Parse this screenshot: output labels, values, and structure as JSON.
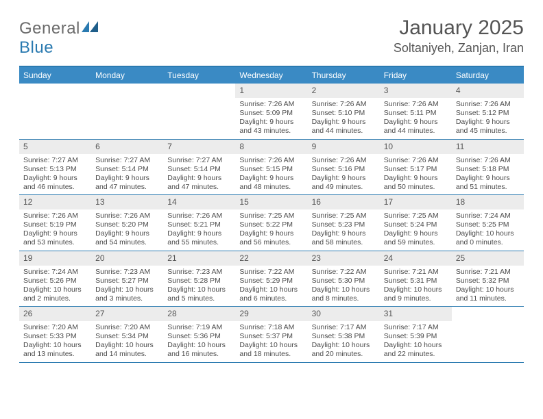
{
  "logo": {
    "text1": "General",
    "text2": "Blue"
  },
  "title": "January 2025",
  "location": "Soltaniyeh, Zanjan, Iran",
  "colors": {
    "header_bg": "#3a8ac4",
    "header_border": "#2a7ab0",
    "daynum_bg": "#ececec",
    "text": "#4a4a4a",
    "title_text": "#555555"
  },
  "day_labels": [
    "Sunday",
    "Monday",
    "Tuesday",
    "Wednesday",
    "Thursday",
    "Friday",
    "Saturday"
  ],
  "weeks": [
    [
      {
        "empty": true
      },
      {
        "empty": true
      },
      {
        "empty": true
      },
      {
        "n": "1",
        "sr": "7:26 AM",
        "ss": "5:09 PM",
        "dl": "9 hours and 43 minutes."
      },
      {
        "n": "2",
        "sr": "7:26 AM",
        "ss": "5:10 PM",
        "dl": "9 hours and 44 minutes."
      },
      {
        "n": "3",
        "sr": "7:26 AM",
        "ss": "5:11 PM",
        "dl": "9 hours and 44 minutes."
      },
      {
        "n": "4",
        "sr": "7:26 AM",
        "ss": "5:12 PM",
        "dl": "9 hours and 45 minutes."
      }
    ],
    [
      {
        "n": "5",
        "sr": "7:27 AM",
        "ss": "5:13 PM",
        "dl": "9 hours and 46 minutes."
      },
      {
        "n": "6",
        "sr": "7:27 AM",
        "ss": "5:14 PM",
        "dl": "9 hours and 47 minutes."
      },
      {
        "n": "7",
        "sr": "7:27 AM",
        "ss": "5:14 PM",
        "dl": "9 hours and 47 minutes."
      },
      {
        "n": "8",
        "sr": "7:26 AM",
        "ss": "5:15 PM",
        "dl": "9 hours and 48 minutes."
      },
      {
        "n": "9",
        "sr": "7:26 AM",
        "ss": "5:16 PM",
        "dl": "9 hours and 49 minutes."
      },
      {
        "n": "10",
        "sr": "7:26 AM",
        "ss": "5:17 PM",
        "dl": "9 hours and 50 minutes."
      },
      {
        "n": "11",
        "sr": "7:26 AM",
        "ss": "5:18 PM",
        "dl": "9 hours and 51 minutes."
      }
    ],
    [
      {
        "n": "12",
        "sr": "7:26 AM",
        "ss": "5:19 PM",
        "dl": "9 hours and 53 minutes."
      },
      {
        "n": "13",
        "sr": "7:26 AM",
        "ss": "5:20 PM",
        "dl": "9 hours and 54 minutes."
      },
      {
        "n": "14",
        "sr": "7:26 AM",
        "ss": "5:21 PM",
        "dl": "9 hours and 55 minutes."
      },
      {
        "n": "15",
        "sr": "7:25 AM",
        "ss": "5:22 PM",
        "dl": "9 hours and 56 minutes."
      },
      {
        "n": "16",
        "sr": "7:25 AM",
        "ss": "5:23 PM",
        "dl": "9 hours and 58 minutes."
      },
      {
        "n": "17",
        "sr": "7:25 AM",
        "ss": "5:24 PM",
        "dl": "9 hours and 59 minutes."
      },
      {
        "n": "18",
        "sr": "7:24 AM",
        "ss": "5:25 PM",
        "dl": "10 hours and 0 minutes."
      }
    ],
    [
      {
        "n": "19",
        "sr": "7:24 AM",
        "ss": "5:26 PM",
        "dl": "10 hours and 2 minutes."
      },
      {
        "n": "20",
        "sr": "7:23 AM",
        "ss": "5:27 PM",
        "dl": "10 hours and 3 minutes."
      },
      {
        "n": "21",
        "sr": "7:23 AM",
        "ss": "5:28 PM",
        "dl": "10 hours and 5 minutes."
      },
      {
        "n": "22",
        "sr": "7:22 AM",
        "ss": "5:29 PM",
        "dl": "10 hours and 6 minutes."
      },
      {
        "n": "23",
        "sr": "7:22 AM",
        "ss": "5:30 PM",
        "dl": "10 hours and 8 minutes."
      },
      {
        "n": "24",
        "sr": "7:21 AM",
        "ss": "5:31 PM",
        "dl": "10 hours and 9 minutes."
      },
      {
        "n": "25",
        "sr": "7:21 AM",
        "ss": "5:32 PM",
        "dl": "10 hours and 11 minutes."
      }
    ],
    [
      {
        "n": "26",
        "sr": "7:20 AM",
        "ss": "5:33 PM",
        "dl": "10 hours and 13 minutes."
      },
      {
        "n": "27",
        "sr": "7:20 AM",
        "ss": "5:34 PM",
        "dl": "10 hours and 14 minutes."
      },
      {
        "n": "28",
        "sr": "7:19 AM",
        "ss": "5:36 PM",
        "dl": "10 hours and 16 minutes."
      },
      {
        "n": "29",
        "sr": "7:18 AM",
        "ss": "5:37 PM",
        "dl": "10 hours and 18 minutes."
      },
      {
        "n": "30",
        "sr": "7:17 AM",
        "ss": "5:38 PM",
        "dl": "10 hours and 20 minutes."
      },
      {
        "n": "31",
        "sr": "7:17 AM",
        "ss": "5:39 PM",
        "dl": "10 hours and 22 minutes."
      },
      {
        "empty": true
      }
    ]
  ],
  "labels": {
    "sunrise": "Sunrise:",
    "sunset": "Sunset:",
    "daylight": "Daylight:"
  }
}
